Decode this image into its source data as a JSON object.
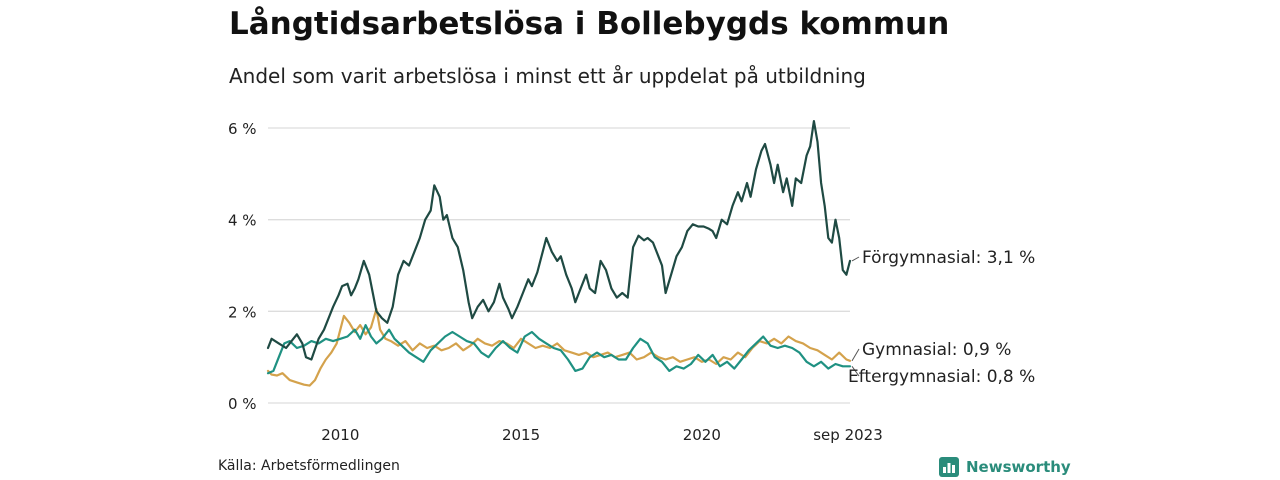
{
  "title": "Långtidsarbetslösa i Bollebygds kommun",
  "subtitle": "Andel som varit arbetslösa i minst ett år uppdelat på utbildning",
  "source": "Källa: Arbetsförmedlingen",
  "brand": "Newsworthy",
  "colors": {
    "forgymnasial": "#1f4a43",
    "gymnasial": "#d4a24c",
    "eftergymnasial": "#1f9182",
    "grid": "#dddddd",
    "text": "#222222"
  },
  "chart_data": {
    "type": "line",
    "x_range": [
      2008.0,
      2023.67
    ],
    "ylim": [
      0,
      6
    ],
    "y_ticks": [
      {
        "value": 0,
        "label": "0 %"
      },
      {
        "value": 2,
        "label": "2 %"
      },
      {
        "value": 4,
        "label": "4 %"
      },
      {
        "value": 6,
        "label": "6 %"
      }
    ],
    "x_ticks": [
      {
        "value": 2010,
        "label": "2010"
      },
      {
        "value": 2015,
        "label": "2015"
      },
      {
        "value": 2020,
        "label": "2020"
      },
      {
        "value": 2023.67,
        "label": "sep 2023"
      }
    ],
    "grid": true,
    "series": [
      {
        "name": "Förgymnasial",
        "label": "Förgymnasial: 3,1 %",
        "color_key": "forgymnasial",
        "points": [
          [
            2008.0,
            1.2
          ],
          [
            2008.1,
            1.4
          ],
          [
            2008.3,
            1.3
          ],
          [
            2008.5,
            1.2
          ],
          [
            2008.7,
            1.4
          ],
          [
            2008.8,
            1.5
          ],
          [
            2008.95,
            1.3
          ],
          [
            2009.05,
            1.0
          ],
          [
            2009.2,
            0.95
          ],
          [
            2009.4,
            1.4
          ],
          [
            2009.55,
            1.6
          ],
          [
            2009.7,
            1.9
          ],
          [
            2009.8,
            2.1
          ],
          [
            2009.95,
            2.35
          ],
          [
            2010.05,
            2.55
          ],
          [
            2010.2,
            2.6
          ],
          [
            2010.3,
            2.35
          ],
          [
            2010.4,
            2.5
          ],
          [
            2010.5,
            2.7
          ],
          [
            2010.65,
            3.1
          ],
          [
            2010.8,
            2.8
          ],
          [
            2010.9,
            2.4
          ],
          [
            2011.0,
            2.0
          ],
          [
            2011.15,
            1.85
          ],
          [
            2011.3,
            1.75
          ],
          [
            2011.45,
            2.1
          ],
          [
            2011.6,
            2.8
          ],
          [
            2011.75,
            3.1
          ],
          [
            2011.9,
            3.0
          ],
          [
            2012.05,
            3.3
          ],
          [
            2012.2,
            3.6
          ],
          [
            2012.35,
            4.0
          ],
          [
            2012.5,
            4.2
          ],
          [
            2012.6,
            4.75
          ],
          [
            2012.75,
            4.5
          ],
          [
            2012.85,
            4.0
          ],
          [
            2012.95,
            4.1
          ],
          [
            2013.1,
            3.6
          ],
          [
            2013.25,
            3.4
          ],
          [
            2013.4,
            2.9
          ],
          [
            2013.55,
            2.2
          ],
          [
            2013.65,
            1.85
          ],
          [
            2013.8,
            2.1
          ],
          [
            2013.95,
            2.25
          ],
          [
            2014.1,
            2.0
          ],
          [
            2014.25,
            2.2
          ],
          [
            2014.4,
            2.6
          ],
          [
            2014.5,
            2.3
          ],
          [
            2014.65,
            2.05
          ],
          [
            2014.75,
            1.85
          ],
          [
            2014.9,
            2.1
          ],
          [
            2015.05,
            2.4
          ],
          [
            2015.2,
            2.7
          ],
          [
            2015.3,
            2.55
          ],
          [
            2015.45,
            2.85
          ],
          [
            2015.6,
            3.3
          ],
          [
            2015.7,
            3.6
          ],
          [
            2015.85,
            3.3
          ],
          [
            2016.0,
            3.1
          ],
          [
            2016.1,
            3.2
          ],
          [
            2016.25,
            2.8
          ],
          [
            2016.4,
            2.5
          ],
          [
            2016.5,
            2.2
          ],
          [
            2016.65,
            2.5
          ],
          [
            2016.8,
            2.8
          ],
          [
            2016.9,
            2.5
          ],
          [
            2017.05,
            2.4
          ],
          [
            2017.2,
            3.1
          ],
          [
            2017.35,
            2.9
          ],
          [
            2017.5,
            2.5
          ],
          [
            2017.65,
            2.3
          ],
          [
            2017.8,
            2.4
          ],
          [
            2017.95,
            2.3
          ],
          [
            2018.1,
            3.4
          ],
          [
            2018.25,
            3.65
          ],
          [
            2018.4,
            3.55
          ],
          [
            2018.5,
            3.6
          ],
          [
            2018.65,
            3.5
          ],
          [
            2018.8,
            3.2
          ],
          [
            2018.9,
            3.0
          ],
          [
            2019.0,
            2.4
          ],
          [
            2019.15,
            2.8
          ],
          [
            2019.3,
            3.2
          ],
          [
            2019.45,
            3.4
          ],
          [
            2019.6,
            3.75
          ],
          [
            2019.75,
            3.9
          ],
          [
            2019.9,
            3.85
          ],
          [
            2020.05,
            3.85
          ],
          [
            2020.2,
            3.8
          ],
          [
            2020.3,
            3.75
          ],
          [
            2020.4,
            3.6
          ],
          [
            2020.55,
            4.0
          ],
          [
            2020.7,
            3.9
          ],
          [
            2020.85,
            4.3
          ],
          [
            2021.0,
            4.6
          ],
          [
            2021.1,
            4.4
          ],
          [
            2021.25,
            4.8
          ],
          [
            2021.35,
            4.5
          ],
          [
            2021.5,
            5.1
          ],
          [
            2021.65,
            5.5
          ],
          [
            2021.75,
            5.65
          ],
          [
            2021.9,
            5.2
          ],
          [
            2022.0,
            4.8
          ],
          [
            2022.1,
            5.2
          ],
          [
            2022.25,
            4.6
          ],
          [
            2022.35,
            4.9
          ],
          [
            2022.5,
            4.3
          ],
          [
            2022.6,
            4.9
          ],
          [
            2022.75,
            4.8
          ],
          [
            2022.9,
            5.4
          ],
          [
            2023.0,
            5.6
          ],
          [
            2023.1,
            6.15
          ],
          [
            2023.2,
            5.7
          ],
          [
            2023.3,
            4.8
          ],
          [
            2023.4,
            4.3
          ],
          [
            2023.5,
            3.6
          ],
          [
            2023.6,
            3.5
          ],
          [
            2023.7,
            4.0
          ],
          [
            2023.8,
            3.6
          ],
          [
            2023.9,
            2.9
          ],
          [
            2024.0,
            2.8
          ],
          [
            2024.1,
            3.1
          ]
        ]
      },
      {
        "name": "Gymnasial",
        "label": "Gymnasial: 0,9 %",
        "color_key": "gymnasial",
        "points": [
          [
            2008.0,
            0.7
          ],
          [
            2008.1,
            0.62
          ],
          [
            2008.25,
            0.6
          ],
          [
            2008.4,
            0.65
          ],
          [
            2008.6,
            0.5
          ],
          [
            2008.8,
            0.45
          ],
          [
            2009.0,
            0.4
          ],
          [
            2009.15,
            0.38
          ],
          [
            2009.3,
            0.5
          ],
          [
            2009.45,
            0.75
          ],
          [
            2009.6,
            0.95
          ],
          [
            2009.75,
            1.1
          ],
          [
            2009.9,
            1.3
          ],
          [
            2010.0,
            1.6
          ],
          [
            2010.1,
            1.9
          ],
          [
            2010.25,
            1.75
          ],
          [
            2010.4,
            1.55
          ],
          [
            2010.55,
            1.7
          ],
          [
            2010.7,
            1.5
          ],
          [
            2010.85,
            1.65
          ],
          [
            2011.0,
            2.05
          ],
          [
            2011.1,
            1.6
          ],
          [
            2011.25,
            1.4
          ],
          [
            2011.4,
            1.35
          ],
          [
            2011.6,
            1.25
          ],
          [
            2011.8,
            1.35
          ],
          [
            2012.0,
            1.15
          ],
          [
            2012.2,
            1.3
          ],
          [
            2012.4,
            1.2
          ],
          [
            2012.6,
            1.25
          ],
          [
            2012.8,
            1.15
          ],
          [
            2013.0,
            1.2
          ],
          [
            2013.2,
            1.3
          ],
          [
            2013.4,
            1.15
          ],
          [
            2013.6,
            1.25
          ],
          [
            2013.8,
            1.4
          ],
          [
            2014.0,
            1.3
          ],
          [
            2014.2,
            1.25
          ],
          [
            2014.4,
            1.35
          ],
          [
            2014.6,
            1.3
          ],
          [
            2014.8,
            1.2
          ],
          [
            2015.0,
            1.4
          ],
          [
            2015.2,
            1.3
          ],
          [
            2015.4,
            1.2
          ],
          [
            2015.6,
            1.25
          ],
          [
            2015.8,
            1.2
          ],
          [
            2016.0,
            1.3
          ],
          [
            2016.2,
            1.15
          ],
          [
            2016.4,
            1.1
          ],
          [
            2016.6,
            1.05
          ],
          [
            2016.8,
            1.1
          ],
          [
            2017.0,
            1.0
          ],
          [
            2017.2,
            1.05
          ],
          [
            2017.4,
            1.1
          ],
          [
            2017.6,
            1.0
          ],
          [
            2017.8,
            1.05
          ],
          [
            2018.0,
            1.1
          ],
          [
            2018.2,
            0.95
          ],
          [
            2018.4,
            1.0
          ],
          [
            2018.6,
            1.1
          ],
          [
            2018.8,
            1.0
          ],
          [
            2019.0,
            0.95
          ],
          [
            2019.2,
            1.0
          ],
          [
            2019.4,
            0.9
          ],
          [
            2019.6,
            0.95
          ],
          [
            2019.8,
            1.0
          ],
          [
            2020.0,
            0.9
          ],
          [
            2020.2,
            0.95
          ],
          [
            2020.4,
            0.85
          ],
          [
            2020.6,
            1.0
          ],
          [
            2020.8,
            0.95
          ],
          [
            2021.0,
            1.1
          ],
          [
            2021.2,
            1.0
          ],
          [
            2021.4,
            1.2
          ],
          [
            2021.6,
            1.35
          ],
          [
            2021.8,
            1.3
          ],
          [
            2022.0,
            1.4
          ],
          [
            2022.2,
            1.3
          ],
          [
            2022.4,
            1.45
          ],
          [
            2022.6,
            1.35
          ],
          [
            2022.8,
            1.3
          ],
          [
            2023.0,
            1.2
          ],
          [
            2023.2,
            1.15
          ],
          [
            2023.4,
            1.05
          ],
          [
            2023.6,
            0.95
          ],
          [
            2023.8,
            1.1
          ],
          [
            2024.0,
            0.95
          ],
          [
            2024.1,
            0.92
          ]
        ]
      },
      {
        "name": "Eftergymnasial",
        "label": "Eftergymnasial: 0,8 %",
        "color_key": "eftergymnasial",
        "points": [
          [
            2008.0,
            0.65
          ],
          [
            2008.15,
            0.7
          ],
          [
            2008.3,
            1.0
          ],
          [
            2008.45,
            1.3
          ],
          [
            2008.6,
            1.35
          ],
          [
            2008.8,
            1.2
          ],
          [
            2009.0,
            1.25
          ],
          [
            2009.2,
            1.35
          ],
          [
            2009.4,
            1.3
          ],
          [
            2009.6,
            1.4
          ],
          [
            2009.8,
            1.35
          ],
          [
            2010.0,
            1.4
          ],
          [
            2010.2,
            1.45
          ],
          [
            2010.4,
            1.6
          ],
          [
            2010.55,
            1.4
          ],
          [
            2010.7,
            1.7
          ],
          [
            2010.85,
            1.45
          ],
          [
            2011.0,
            1.3
          ],
          [
            2011.15,
            1.4
          ],
          [
            2011.35,
            1.6
          ],
          [
            2011.5,
            1.4
          ],
          [
            2011.7,
            1.25
          ],
          [
            2011.9,
            1.1
          ],
          [
            2012.1,
            1.0
          ],
          [
            2012.3,
            0.9
          ],
          [
            2012.5,
            1.15
          ],
          [
            2012.7,
            1.3
          ],
          [
            2012.9,
            1.45
          ],
          [
            2013.1,
            1.55
          ],
          [
            2013.3,
            1.45
          ],
          [
            2013.5,
            1.35
          ],
          [
            2013.7,
            1.3
          ],
          [
            2013.9,
            1.1
          ],
          [
            2014.1,
            1.0
          ],
          [
            2014.3,
            1.2
          ],
          [
            2014.5,
            1.35
          ],
          [
            2014.7,
            1.2
          ],
          [
            2014.9,
            1.1
          ],
          [
            2015.1,
            1.45
          ],
          [
            2015.3,
            1.55
          ],
          [
            2015.5,
            1.4
          ],
          [
            2015.7,
            1.3
          ],
          [
            2015.9,
            1.2
          ],
          [
            2016.1,
            1.15
          ],
          [
            2016.3,
            0.95
          ],
          [
            2016.5,
            0.7
          ],
          [
            2016.7,
            0.75
          ],
          [
            2016.9,
            1.0
          ],
          [
            2017.1,
            1.1
          ],
          [
            2017.3,
            1.0
          ],
          [
            2017.5,
            1.05
          ],
          [
            2017.7,
            0.95
          ],
          [
            2017.9,
            0.95
          ],
          [
            2018.1,
            1.2
          ],
          [
            2018.3,
            1.4
          ],
          [
            2018.5,
            1.3
          ],
          [
            2018.7,
            1.0
          ],
          [
            2018.9,
            0.9
          ],
          [
            2019.1,
            0.7
          ],
          [
            2019.3,
            0.8
          ],
          [
            2019.5,
            0.75
          ],
          [
            2019.7,
            0.85
          ],
          [
            2019.9,
            1.05
          ],
          [
            2020.1,
            0.9
          ],
          [
            2020.3,
            1.05
          ],
          [
            2020.5,
            0.8
          ],
          [
            2020.7,
            0.9
          ],
          [
            2020.9,
            0.75
          ],
          [
            2021.1,
            0.95
          ],
          [
            2021.3,
            1.15
          ],
          [
            2021.5,
            1.3
          ],
          [
            2021.7,
            1.45
          ],
          [
            2021.9,
            1.25
          ],
          [
            2022.1,
            1.2
          ],
          [
            2022.3,
            1.25
          ],
          [
            2022.5,
            1.2
          ],
          [
            2022.7,
            1.1
          ],
          [
            2022.9,
            0.9
          ],
          [
            2023.1,
            0.8
          ],
          [
            2023.3,
            0.9
          ],
          [
            2023.5,
            0.75
          ],
          [
            2023.7,
            0.85
          ],
          [
            2023.9,
            0.8
          ],
          [
            2024.1,
            0.8
          ]
        ]
      }
    ]
  }
}
